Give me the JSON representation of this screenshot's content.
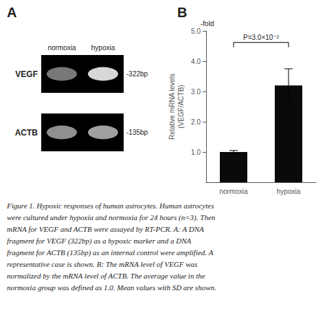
{
  "chart_data": {
    "type": "bar",
    "categories": [
      "normoxia",
      "hypoxia"
    ],
    "values": [
      1.0,
      3.2
    ],
    "errors": [
      0.05,
      0.55
    ],
    "color": "#0a0a0a",
    "ylabel": "Relative mRNA levels\n(VEGF/ACTB)",
    "ylim": [
      0,
      5.0
    ],
    "yticks": [
      {
        "value": 1.0,
        "label": "1.0"
      },
      {
        "value": 2.0,
        "label": "2.0"
      },
      {
        "value": 3.0,
        "label": "3.0"
      },
      {
        "value": 4.0,
        "label": "4.0"
      },
      {
        "value": 5.0,
        "label": "5.0"
      }
    ],
    "grid": false,
    "fold_label": "-fold",
    "panel_labels": [
      "A",
      "B"
    ],
    "significance": {
      "from": "normoxia",
      "to": "hypoxia",
      "y": 4.62,
      "label": "P=3.0×10⁻²"
    },
    "gel": {
      "lanes": [
        "normoxia",
        "hypoxia"
      ],
      "bands": [
        {
          "name": "VEGF",
          "size": "-322bp",
          "colors": [
            "#787878",
            "#d8d8d8"
          ]
        },
        {
          "name": "ACTB",
          "size": "-135bp",
          "colors": [
            "#909090",
            "#a0a0a0"
          ]
        }
      ]
    },
    "caption": [
      "Figure 1. Hypoxic responses of human astrocytes. Human astrocytes",
      "were cultured under hypoxia and normoxia for 24 hours (n=3). Then",
      "mRNA for VEGF and ACTB were assayed by RT-PCR. A: A DNA",
      "fragment for VEGF (322bp) as a hypoxic marker and a DNA",
      "fragment for ACTB (135bp) as an internal control were amplified. A",
      "representative case is shown. B: The mRNA level of VEGF was",
      "normalized by the mRNA level of ACTB. The average value in the",
      "normoxia group was defined as 1.0. Mean values with SD are shown."
    ]
  }
}
